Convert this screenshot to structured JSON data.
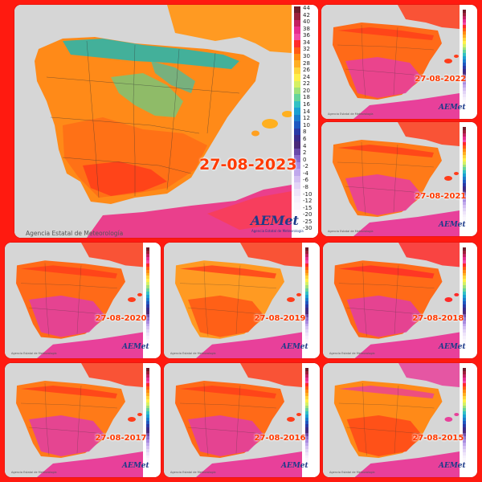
{
  "main_map": {
    "date": "27-08-2023",
    "agency": "Agencia Estatal de Meteorología",
    "logo": "AEMet",
    "logo_sub": "Agencia Estatal de Meteorología",
    "scale_ticks": [
      "44",
      "42",
      "40",
      "38",
      "36",
      "34",
      "32",
      "30",
      "28",
      "26",
      "24",
      "22",
      "20",
      "18",
      "16",
      "14",
      "12",
      "10",
      "8",
      "6",
      "4",
      "2",
      "0",
      "-2",
      "-4",
      "-6",
      "-8",
      "-10",
      "-12",
      "-15",
      "-20",
      "-25",
      "-30"
    ],
    "scale_colors": [
      "#6e1b2a",
      "#9b1f3a",
      "#c42060",
      "#e72c8e",
      "#f24aa6",
      "#ff2a2a",
      "#ff5a14",
      "#ff8a12",
      "#ffae22",
      "#ffd43a",
      "#fff04a",
      "#d5f064",
      "#a0e27a",
      "#66d49a",
      "#33c1c4",
      "#1ca0d2",
      "#1c7ccc",
      "#1f58c0",
      "#2a3aa6",
      "#3a2a8a",
      "#4a2a7a",
      "#6a4aaa",
      "#8a6acc",
      "#a88ae0",
      "#c0a8ec",
      "#d4c0f2",
      "#e2d4f6",
      "#eee4fa",
      "#f6f0fc",
      "#faf6fd",
      "#fcfaff",
      "#fefdff",
      "#ffffff"
    ]
  },
  "small_maps": [
    {
      "date": "27-08-2022",
      "logo": "AEMet"
    },
    {
      "date": "27-08-2021",
      "logo": "AEMet"
    },
    {
      "date": "27-08-2020",
      "logo": "AEMet"
    },
    {
      "date": "27-08-2019",
      "logo": "AEMet"
    },
    {
      "date": "27-08-2018",
      "logo": "AEMet"
    },
    {
      "date": "27-08-2017",
      "logo": "AEMet"
    },
    {
      "date": "27-08-2016",
      "logo": "AEMet"
    },
    {
      "date": "27-08-2015",
      "logo": "AEMet"
    }
  ],
  "colors": {
    "frame": "#ff1a10",
    "sea": "#d6d6d6",
    "land_main": "#ff8a18",
    "land_hot": "#ff3c1a",
    "very_hot": "#e8409a",
    "cool_north": "#2fb4a8",
    "date_text": "#ff3a00"
  }
}
